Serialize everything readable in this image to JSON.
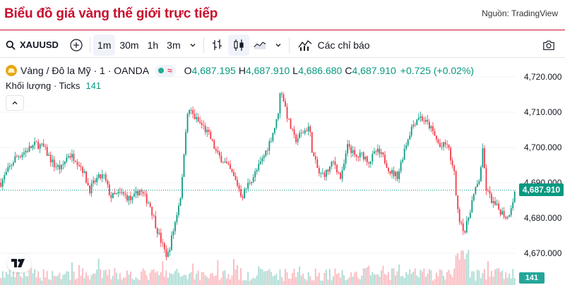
{
  "page": {
    "title": "Biểu đồ giá vàng thế giới trực tiếp",
    "source": "Nguồn: TradingView"
  },
  "toolbar": {
    "symbol": "XAUUSD",
    "intervals": [
      "1m",
      "30m",
      "1h",
      "3m"
    ],
    "active_interval": "1m",
    "indicators_label": "Các chỉ báo"
  },
  "legend": {
    "title": "Vàng / Đô la Mỹ · 1 · OANDA",
    "open_label": "O",
    "open": "4,687.195",
    "high_label": "H",
    "high": "4,687.910",
    "low_label": "L",
    "low": "4,686.680",
    "close_label": "C",
    "close": "4,687.910",
    "change": "+0.725 (+0.02%)",
    "volume_label": "Khối lượng · Ticks",
    "volume_value": "141"
  },
  "colors": {
    "up": "#089981",
    "down": "#f23645",
    "title": "#c8102e"
  },
  "chart_data": {
    "type": "candlestick",
    "y_ticks": [
      "4,720.000",
      "4,710.000",
      "4,700.000",
      "4,690.000",
      "4,680.000",
      "4,670.000"
    ],
    "ylim": [
      4666,
      4724
    ],
    "current_price": "4,687.910",
    "current_volume": "141",
    "x_labels": [],
    "price_path": [
      [
        0,
        4690
      ],
      [
        4,
        4697
      ],
      [
        7,
        4699
      ],
      [
        10,
        4701
      ],
      [
        12,
        4700
      ],
      [
        15,
        4695
      ],
      [
        17,
        4694
      ],
      [
        19,
        4698
      ],
      [
        21,
        4697
      ],
      [
        23,
        4694
      ],
      [
        25,
        4688
      ],
      [
        27,
        4691
      ],
      [
        29,
        4692
      ],
      [
        31,
        4686
      ],
      [
        34,
        4687
      ],
      [
        37,
        4685
      ],
      [
        39,
        4688
      ],
      [
        42,
        4684
      ],
      [
        44,
        4677
      ],
      [
        46,
        4671
      ],
      [
        47,
        4669
      ],
      [
        49,
        4678
      ],
      [
        51,
        4688
      ],
      [
        52,
        4704
      ],
      [
        53,
        4711
      ],
      [
        55,
        4708
      ],
      [
        57,
        4706
      ],
      [
        59,
        4703
      ],
      [
        61,
        4698
      ],
      [
        63,
        4696
      ],
      [
        65,
        4693
      ],
      [
        67,
        4689
      ],
      [
        68,
        4686
      ],
      [
        70,
        4690
      ],
      [
        72,
        4693
      ],
      [
        74,
        4697
      ],
      [
        76,
        4702
      ],
      [
        78,
        4708
      ],
      [
        79,
        4717
      ],
      [
        81,
        4708
      ],
      [
        83,
        4702
      ],
      [
        85,
        4704
      ],
      [
        87,
        4706
      ],
      [
        88,
        4698
      ],
      [
        90,
        4692
      ],
      [
        92,
        4693
      ],
      [
        94,
        4696
      ],
      [
        96,
        4691
      ],
      [
        98,
        4701
      ],
      [
        100,
        4697
      ],
      [
        102,
        4698
      ],
      [
        104,
        4696
      ],
      [
        106,
        4699
      ],
      [
        108,
        4697
      ],
      [
        110,
        4693
      ],
      [
        112,
        4692
      ],
      [
        114,
        4700
      ],
      [
        116,
        4706
      ],
      [
        118,
        4709
      ],
      [
        120,
        4707
      ],
      [
        121,
        4706
      ],
      [
        122,
        4704
      ],
      [
        124,
        4700
      ],
      [
        126,
        4701
      ],
      [
        128,
        4692
      ],
      [
        129,
        4681
      ],
      [
        131,
        4676
      ],
      [
        133,
        4685
      ],
      [
        135,
        4691
      ],
      [
        136,
        4699
      ],
      [
        137,
        4688
      ],
      [
        139,
        4684
      ],
      [
        141,
        4682
      ],
      [
        143,
        4680
      ],
      [
        145,
        4687
      ]
    ]
  }
}
